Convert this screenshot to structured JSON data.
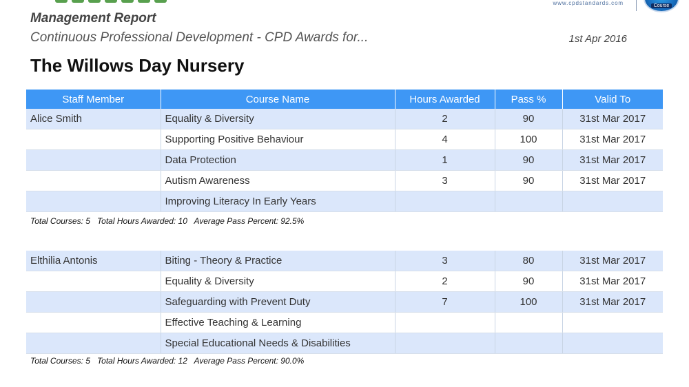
{
  "brand": {
    "url": "www.cpdstandards.com",
    "seal_word": "Course",
    "accent": "#3e97f5"
  },
  "report": {
    "heading": "Management Report",
    "subtitle": "Continuous Professional Development - CPD Awards for...",
    "date": "1st Apr 2016",
    "organisation": "The Willows Day Nursery"
  },
  "table": {
    "headers": [
      "Staff Member",
      "Course Name",
      "Hours Awarded",
      "Pass %",
      "Valid To"
    ]
  },
  "staff": [
    {
      "rows": [
        {
          "member": "Alice Smith",
          "course": "Equality & Diversity",
          "hours": "2",
          "pass": "90",
          "valid": "31st Mar 2017"
        },
        {
          "member": "",
          "course": "Supporting Positive Behaviour",
          "hours": "4",
          "pass": "100",
          "valid": "31st Mar 2017"
        },
        {
          "member": "",
          "course": "Data Protection",
          "hours": "1",
          "pass": "90",
          "valid": "31st Mar 2017"
        },
        {
          "member": "",
          "course": "Autism Awareness",
          "hours": "3",
          "pass": "90",
          "valid": "31st Mar 2017"
        },
        {
          "member": "",
          "course": "Improving Literacy In Early Years",
          "hours": "",
          "pass": "",
          "valid": ""
        }
      ],
      "summary": "Total Courses: 5   Total Hours Awarded: 10   Average Pass Percent: 92.5%"
    },
    {
      "rows": [
        {
          "member": "Elthilia Antonis",
          "course": "Biting - Theory & Practice",
          "hours": "3",
          "pass": "80",
          "valid": "31st Mar 2017"
        },
        {
          "member": "",
          "course": "Equality & Diversity",
          "hours": "2",
          "pass": "90",
          "valid": "31st Mar 2017"
        },
        {
          "member": "",
          "course": "Safeguarding with Prevent Duty",
          "hours": "7",
          "pass": "100",
          "valid": "31st Mar 2017"
        },
        {
          "member": "",
          "course": "Effective Teaching & Learning",
          "hours": "",
          "pass": "",
          "valid": ""
        },
        {
          "member": "",
          "course": "Special Educational Needs & Disabilities",
          "hours": "",
          "pass": "",
          "valid": ""
        }
      ],
      "summary": "Total Courses: 5   Total Hours Awarded: 12   Average Pass Percent: 90.0%"
    }
  ]
}
